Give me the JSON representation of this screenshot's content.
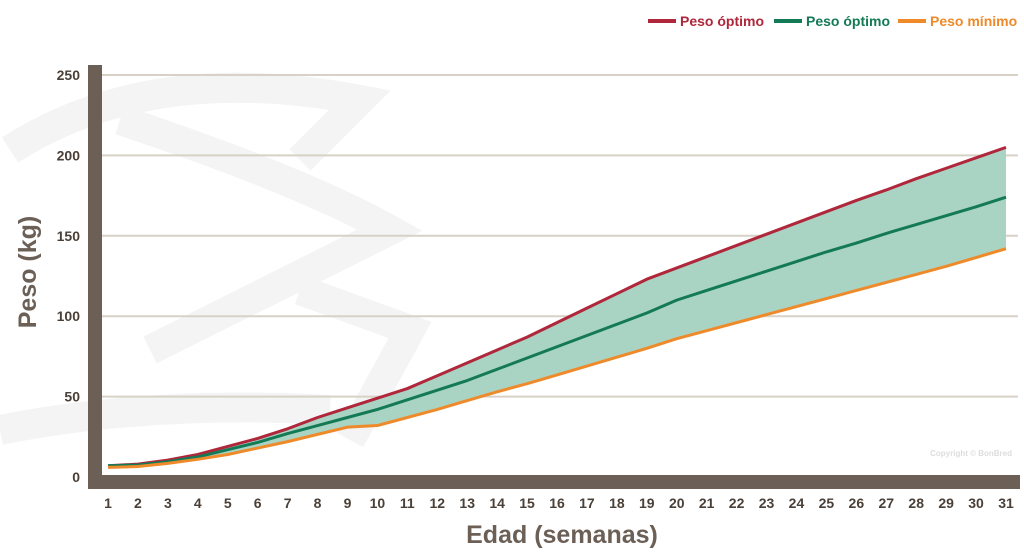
{
  "chart_data": {
    "type": "line",
    "title": "",
    "xlabel": "Edad (semanas)",
    "ylabel": "Peso (kg)",
    "x": [
      1,
      2,
      3,
      4,
      5,
      6,
      7,
      8,
      9,
      10,
      11,
      12,
      13,
      14,
      15,
      16,
      17,
      18,
      19,
      20,
      21,
      22,
      23,
      24,
      25,
      26,
      27,
      28,
      29,
      30,
      31
    ],
    "xlim": [
      1,
      31
    ],
    "ylim": [
      0,
      250
    ],
    "yticks": [
      0,
      50,
      100,
      150,
      200,
      250
    ],
    "grid": "horizontal",
    "legend_position": "top-right",
    "shaded_band": {
      "between": [
        "Peso óptimo (rojo)",
        "Peso mínimo"
      ],
      "color": "#a9d4c4"
    },
    "series": [
      {
        "name": "Peso óptimo",
        "color": "#b0263a",
        "values": [
          7,
          8,
          10.5,
          14,
          19,
          24,
          30,
          37,
          43,
          49,
          55,
          63,
          71,
          79,
          87,
          96,
          105,
          114,
          123,
          130,
          137,
          144,
          151,
          158,
          165,
          172,
          178.5,
          185.5,
          192,
          198.5,
          205
        ]
      },
      {
        "name": "Peso óptimo",
        "color": "#137a55",
        "values": [
          7,
          7.5,
          9.5,
          12.5,
          17,
          21.5,
          27,
          32,
          37,
          42,
          48,
          54,
          60,
          67,
          74,
          81,
          88,
          95,
          102,
          110,
          116,
          122,
          128,
          134,
          140,
          145.5,
          151.5,
          157,
          162.5,
          168,
          174
        ]
      },
      {
        "name": "Peso mínimo",
        "color": "#ee8a2a",
        "values": [
          6,
          6.5,
          8.5,
          11,
          14,
          18,
          22,
          26.5,
          31,
          32,
          37,
          42,
          47.5,
          53,
          58,
          63.5,
          69,
          74.5,
          80,
          86,
          91,
          96,
          101,
          106,
          111,
          116,
          121,
          126,
          131,
          136.5,
          142
        ]
      }
    ]
  },
  "watermark": "Copyright © BonBred",
  "colors": {
    "axis": "#6b5f56",
    "grid": "#d8d1c8"
  }
}
